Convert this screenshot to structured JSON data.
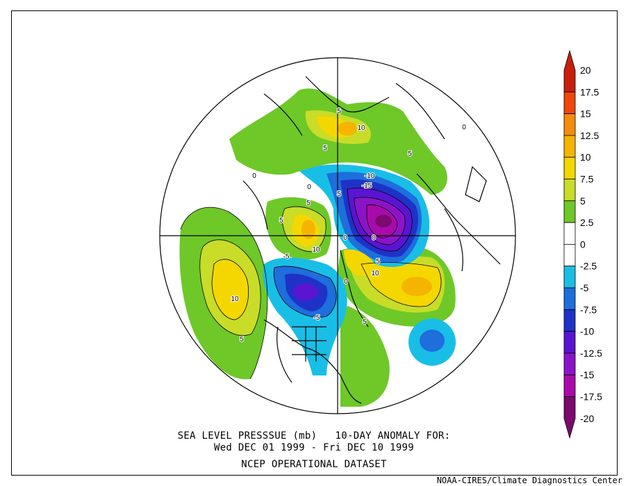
{
  "caption": {
    "line1": "SEA LEVEL PRESSSUE (mb)   10-DAY ANOMALY FOR:",
    "line2": "Wed DEC 01 1999 - Fri DEC 10 1999",
    "line3": "NCEP OPERATIONAL DATASET"
  },
  "credit": "NOAA-CIRES/Climate Diagnostics Center",
  "colorbar": {
    "levels": [
      "20",
      "17.5",
      "15",
      "12.5",
      "10",
      "7.5",
      "5",
      "2.5",
      "0",
      "-2.5",
      "-5",
      "-7.5",
      "-10",
      "-12.5",
      "-15",
      "-17.5",
      "-20"
    ],
    "colors": [
      "#c81e0a",
      "#f0460a",
      "#f58c0a",
      "#f5b400",
      "#f5d700",
      "#c8dc28",
      "#6ec828",
      "#ffffff",
      "#ffffff",
      "#19bee6",
      "#1e6edc",
      "#1e32c8",
      "#5a14d2",
      "#8c14c8",
      "#aa0aaa",
      "#7a0a6e"
    ]
  },
  "map_labels": [
    "10",
    "5",
    "5",
    "-5",
    "-5",
    "10",
    "10",
    "0",
    "5",
    "5",
    "-10",
    "-15",
    "5",
    "0",
    "0",
    "5",
    "5",
    "10",
    "5",
    "0",
    "0",
    "5",
    "0"
  ]
}
